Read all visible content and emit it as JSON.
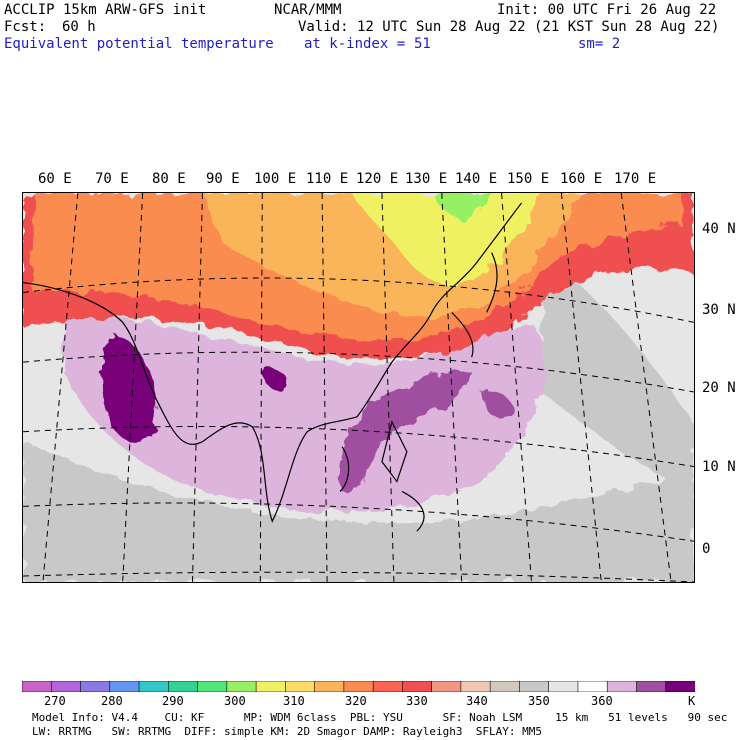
{
  "header": {
    "model": "ACCLIP 15km ARW-GFS init",
    "center": "NCAR/MMM",
    "init": "Init: 00 UTC Fri 26 Aug 22",
    "fcst_label": "Fcst:",
    "fcst_value": "60 h",
    "valid": "Valid: 12 UTC Sun 28 Aug 22 (21 KST Sun 28 Aug 22)",
    "field": "Equivalent potential temperature",
    "level_label": "at k-index =",
    "level_value": "51",
    "smooth": "sm= 2"
  },
  "map": {
    "lon_labels": [
      "60 E",
      "70 E",
      "80 E",
      "90 E",
      "100 E",
      "110 E",
      "120 E",
      "130 E",
      "140 E",
      "150 E",
      "160 E",
      "170 E"
    ],
    "lat_labels": [
      "40 N",
      "30 N",
      "20 N",
      "10 N",
      "0"
    ]
  },
  "colorbar": {
    "colors": [
      "#c864c8",
      "#b464dc",
      "#8c78e6",
      "#6496f0",
      "#32c8c8",
      "#32d296",
      "#50e678",
      "#96f064",
      "#f0f064",
      "#fadc64",
      "#fab45a",
      "#fa8c50",
      "#fa6450",
      "#f05050",
      "#f09682",
      "#f0c8b4",
      "#d2c8be",
      "#c8c8c8",
      "#e6e6e6",
      "#ffffff",
      "#dcb4dc",
      "#a050a0",
      "#780078"
    ],
    "labels": [
      "270",
      "280",
      "290",
      "300",
      "310",
      "320",
      "330",
      "340",
      "350",
      "360",
      "K"
    ]
  },
  "footer": {
    "line1": "Model Info: V4.4    CU: KF      MP: WDM 6class  PBL: YSU      SF: Noah LSM     15 km   51 levels   90 sec",
    "line2": "LW: RRTMG   SW: RRTMG  DIFF: simple KM: 2D Smagor DAMP: Rayleigh3  SFLAY: MM5"
  },
  "palette": {
    "red": "#f05050",
    "orange": "#fa8c50",
    "lightorange": "#fab45a",
    "yellow": "#f0f064",
    "green": "#96f064",
    "lightpurple": "#dcb4dc",
    "purple": "#a050a0",
    "darkpurple": "#780078",
    "gray": "#c8c8c8",
    "lightgray": "#e6e6e6"
  }
}
